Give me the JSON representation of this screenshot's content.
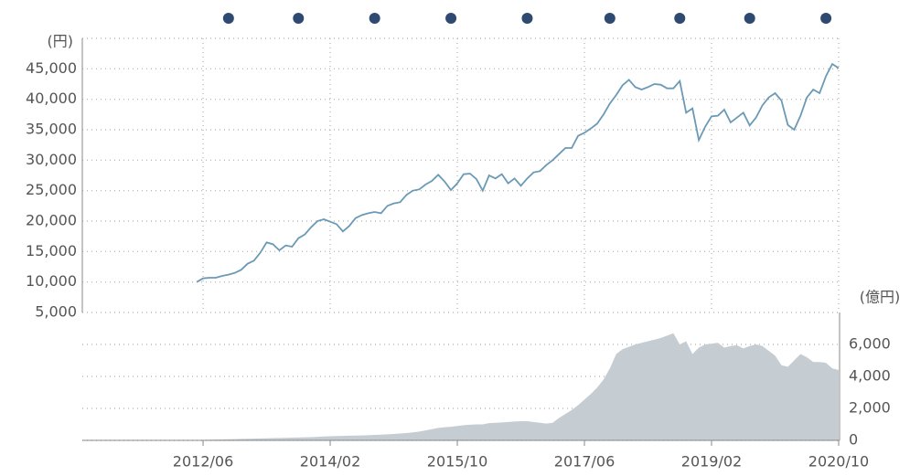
{
  "chart_data": [
    {
      "type": "line",
      "y_label": "(円)",
      "x": [
        "2012/05",
        "2012/06",
        "2012/07",
        "2012/08",
        "2012/09",
        "2012/10",
        "2012/11",
        "2012/12",
        "2013/01",
        "2013/02",
        "2013/03",
        "2013/04",
        "2013/05",
        "2013/06",
        "2013/07",
        "2013/08",
        "2013/09",
        "2013/10",
        "2013/11",
        "2013/12",
        "2014/01",
        "2014/02",
        "2014/03",
        "2014/04",
        "2014/05",
        "2014/06",
        "2014/07",
        "2014/08",
        "2014/09",
        "2014/10",
        "2014/11",
        "2014/12",
        "2015/01",
        "2015/02",
        "2015/03",
        "2015/04",
        "2015/05",
        "2015/06",
        "2015/07",
        "2015/08",
        "2015/09",
        "2015/10",
        "2015/11",
        "2015/12",
        "2016/01",
        "2016/02",
        "2016/03",
        "2016/04",
        "2016/05",
        "2016/06",
        "2016/07",
        "2016/08",
        "2016/09",
        "2016/10",
        "2016/11",
        "2016/12",
        "2017/01",
        "2017/02",
        "2017/03",
        "2017/04",
        "2017/05",
        "2017/06",
        "2017/07",
        "2017/08",
        "2017/09",
        "2017/10",
        "2017/11",
        "2017/12",
        "2018/01",
        "2018/02",
        "2018/03",
        "2018/04",
        "2018/05",
        "2018/06",
        "2018/07",
        "2018/08",
        "2018/09",
        "2018/10",
        "2018/11",
        "2018/12",
        "2019/01",
        "2019/02",
        "2019/03",
        "2019/04",
        "2019/05",
        "2019/06",
        "2019/07",
        "2019/08",
        "2019/09",
        "2019/10",
        "2019/11",
        "2019/12",
        "2020/01",
        "2020/02",
        "2020/03",
        "2020/04",
        "2020/05",
        "2020/06",
        "2020/07",
        "2020/08",
        "2020/09",
        "2020/10"
      ],
      "series": [
        {
          "color": "#6a9ab5",
          "values": [
            10000,
            10600,
            10700,
            10700,
            11000,
            11200,
            11500,
            12000,
            13000,
            13500,
            14800,
            16500,
            16200,
            15200,
            16000,
            15800,
            17200,
            17800,
            19000,
            20000,
            20300,
            19900,
            19500,
            18300,
            19200,
            20500,
            21000,
            21300,
            21500,
            21300,
            22500,
            22900,
            23100,
            24300,
            25000,
            25200,
            26000,
            26600,
            27600,
            26500,
            25100,
            26200,
            27700,
            27800,
            26900,
            25000,
            27500,
            27000,
            27700,
            26200,
            27000,
            25800,
            27000,
            28000,
            28200,
            29200,
            30000,
            31000,
            32000,
            32000,
            34000,
            34500,
            35200,
            36000,
            37500,
            39300,
            40700,
            42300,
            43200,
            42000,
            41600,
            42000,
            42500,
            42400,
            41800,
            41800,
            43000,
            37800,
            38500,
            33300,
            35500,
            37200,
            37300,
            38300,
            36200,
            37000,
            37800,
            35700,
            37000,
            39000,
            40300,
            41000,
            39800,
            35800,
            35000,
            37300,
            40300,
            41600,
            41000,
            43800,
            45800,
            45100
          ]
        }
      ],
      "events": [
        "2012/10",
        "2013/09",
        "2014/09",
        "2015/09",
        "2016/09",
        "2017/10",
        "2018/09",
        "2019/08",
        "2020/08"
      ],
      "events_color": "#2e4a70",
      "xlim": [
        "2010/11",
        "2020/10"
      ],
      "xticks": [
        "2012/06",
        "2014/02",
        "2015/10",
        "2017/06",
        "2019/02",
        "2020/10"
      ],
      "ylim": [
        5000,
        50000
      ],
      "yticks": [
        {
          "value": 5000,
          "label": "5,000"
        },
        {
          "value": 10000,
          "label": "10,000"
        },
        {
          "value": 15000,
          "label": "15,000"
        },
        {
          "value": 20000,
          "label": "20,000"
        },
        {
          "value": 25000,
          "label": "25,000"
        },
        {
          "value": 30000,
          "label": "30,000"
        },
        {
          "value": 35000,
          "label": "35,000"
        },
        {
          "value": 40000,
          "label": "40,000"
        },
        {
          "value": 45000,
          "label": "45,000"
        }
      ],
      "grid": true
    },
    {
      "type": "area",
      "y_label": "(億円)",
      "x": [
        "2010/11",
        "2010/12",
        "2011/01",
        "2011/02",
        "2011/03",
        "2011/04",
        "2011/05",
        "2011/06",
        "2011/07",
        "2011/08",
        "2011/09",
        "2011/10",
        "2011/11",
        "2011/12",
        "2012/01",
        "2012/02",
        "2012/03",
        "2012/04",
        "2012/05",
        "2012/06",
        "2012/07",
        "2012/08",
        "2012/09",
        "2012/10",
        "2012/11",
        "2012/12",
        "2013/01",
        "2013/02",
        "2013/03",
        "2013/04",
        "2013/05",
        "2013/06",
        "2013/07",
        "2013/08",
        "2013/09",
        "2013/10",
        "2013/11",
        "2013/12",
        "2014/01",
        "2014/02",
        "2014/03",
        "2014/04",
        "2014/05",
        "2014/06",
        "2014/07",
        "2014/08",
        "2014/09",
        "2014/10",
        "2014/11",
        "2014/12",
        "2015/01",
        "2015/02",
        "2015/03",
        "2015/04",
        "2015/05",
        "2015/06",
        "2015/07",
        "2015/08",
        "2015/09",
        "2015/10",
        "2015/11",
        "2015/12",
        "2016/01",
        "2016/02",
        "2016/03",
        "2016/04",
        "2016/05",
        "2016/06",
        "2016/07",
        "2016/08",
        "2016/09",
        "2016/10",
        "2016/11",
        "2016/12",
        "2017/01",
        "2017/02",
        "2017/03",
        "2017/04",
        "2017/05",
        "2017/06",
        "2017/07",
        "2017/08",
        "2017/09",
        "2017/10",
        "2017/11",
        "2017/12",
        "2018/01",
        "2018/02",
        "2018/03",
        "2018/04",
        "2018/05",
        "2018/06",
        "2018/07",
        "2018/08",
        "2018/09",
        "2018/10",
        "2018/11",
        "2018/12",
        "2019/01",
        "2019/02",
        "2019/03",
        "2019/04",
        "2019/05",
        "2019/06",
        "2019/07",
        "2019/08",
        "2019/09",
        "2019/10",
        "2019/11",
        "2019/12",
        "2020/01",
        "2020/02",
        "2020/03",
        "2020/04",
        "2020/05",
        "2020/06",
        "2020/07",
        "2020/08",
        "2020/09",
        "2020/10"
      ],
      "series": [
        {
          "color": "#c5ccd2",
          "values": [
            0,
            0,
            0,
            0,
            0,
            0,
            0,
            0,
            0,
            0,
            0,
            0,
            0,
            0,
            0,
            0,
            0,
            0,
            20,
            30,
            40,
            50,
            60,
            70,
            80,
            90,
            100,
            110,
            120,
            130,
            140,
            150,
            160,
            170,
            180,
            190,
            200,
            220,
            240,
            260,
            270,
            280,
            290,
            300,
            310,
            320,
            340,
            360,
            380,
            400,
            430,
            460,
            500,
            550,
            620,
            700,
            780,
            820,
            850,
            900,
            950,
            980,
            1000,
            1000,
            1080,
            1100,
            1120,
            1150,
            1180,
            1200,
            1200,
            1150,
            1100,
            1050,
            1100,
            1400,
            1650,
            1900,
            2200,
            2550,
            2900,
            3300,
            3800,
            4500,
            5400,
            5700,
            5850,
            6000,
            6100,
            6200,
            6300,
            6400,
            6550,
            6700,
            6000,
            6200,
            5400,
            5800,
            6000,
            6050,
            6100,
            5800,
            5900,
            5950,
            5750,
            5900,
            6000,
            5900,
            5600,
            5300,
            4700,
            4600,
            5000,
            5400,
            5200,
            4900,
            4900,
            4850,
            4500,
            4400
          ]
        }
      ],
      "xlim": [
        "2010/11",
        "2020/10"
      ],
      "xticks": [
        "2012/06",
        "2014/02",
        "2015/10",
        "2017/06",
        "2019/02",
        "2020/10"
      ],
      "ylim": [
        0,
        8000
      ],
      "yticks": [
        0,
        {
          "value": 2000,
          "label": "2,000"
        },
        {
          "value": 4000,
          "label": "4,000"
        },
        {
          "value": 6000,
          "label": "6,000"
        }
      ],
      "grid": true
    }
  ]
}
